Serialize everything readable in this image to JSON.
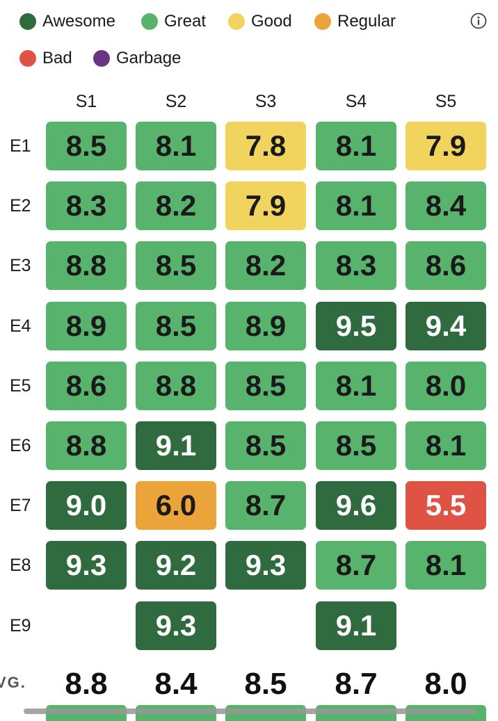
{
  "legend": [
    {
      "label": "Awesome",
      "color": "#2f6b3e"
    },
    {
      "label": "Great",
      "color": "#58b46d"
    },
    {
      "label": "Good",
      "color": "#f0d45e"
    },
    {
      "label": "Regular",
      "color": "#eba43a"
    },
    {
      "label": "Bad",
      "color": "#df5344"
    },
    {
      "label": "Garbage",
      "color": "#6b3483"
    }
  ],
  "info_icon": "info-icon",
  "chart_data": {
    "type": "heatmap",
    "columns": [
      "S1",
      "S2",
      "S3",
      "S4",
      "S5"
    ],
    "rows": [
      "E1",
      "E2",
      "E3",
      "E4",
      "E5",
      "E6",
      "E7",
      "E8",
      "E9"
    ],
    "values": [
      [
        "8.5",
        "8.1",
        "7.8",
        "8.1",
        "7.9"
      ],
      [
        "8.3",
        "8.2",
        "7.9",
        "8.1",
        "8.4"
      ],
      [
        "8.8",
        "8.5",
        "8.2",
        "8.3",
        "8.6"
      ],
      [
        "8.9",
        "8.5",
        "8.9",
        "9.5",
        "9.4"
      ],
      [
        "8.6",
        "8.8",
        "8.5",
        "8.1",
        "8.0"
      ],
      [
        "8.8",
        "9.1",
        "8.5",
        "8.5",
        "8.1"
      ],
      [
        "9.0",
        "6.0",
        "8.7",
        "9.6",
        "5.5"
      ],
      [
        "9.3",
        "9.2",
        "9.3",
        "8.7",
        "8.1"
      ],
      [
        null,
        "9.3",
        null,
        "9.1",
        null
      ]
    ],
    "ratings": [
      [
        "great",
        "great",
        "good",
        "great",
        "good"
      ],
      [
        "great",
        "great",
        "good",
        "great",
        "great"
      ],
      [
        "great",
        "great",
        "great",
        "great",
        "great"
      ],
      [
        "great",
        "great",
        "great",
        "awesome",
        "awesome"
      ],
      [
        "great",
        "great",
        "great",
        "great",
        "great"
      ],
      [
        "great",
        "awesome",
        "great",
        "great",
        "great"
      ],
      [
        "awesome",
        "regular",
        "great",
        "awesome",
        "bad"
      ],
      [
        "awesome",
        "awesome",
        "awesome",
        "great",
        "great"
      ],
      [
        null,
        "awesome",
        null,
        "awesome",
        null
      ]
    ],
    "average_label": "VG.",
    "averages": [
      "8.8",
      "8.4",
      "8.5",
      "8.7",
      "8.0"
    ]
  }
}
